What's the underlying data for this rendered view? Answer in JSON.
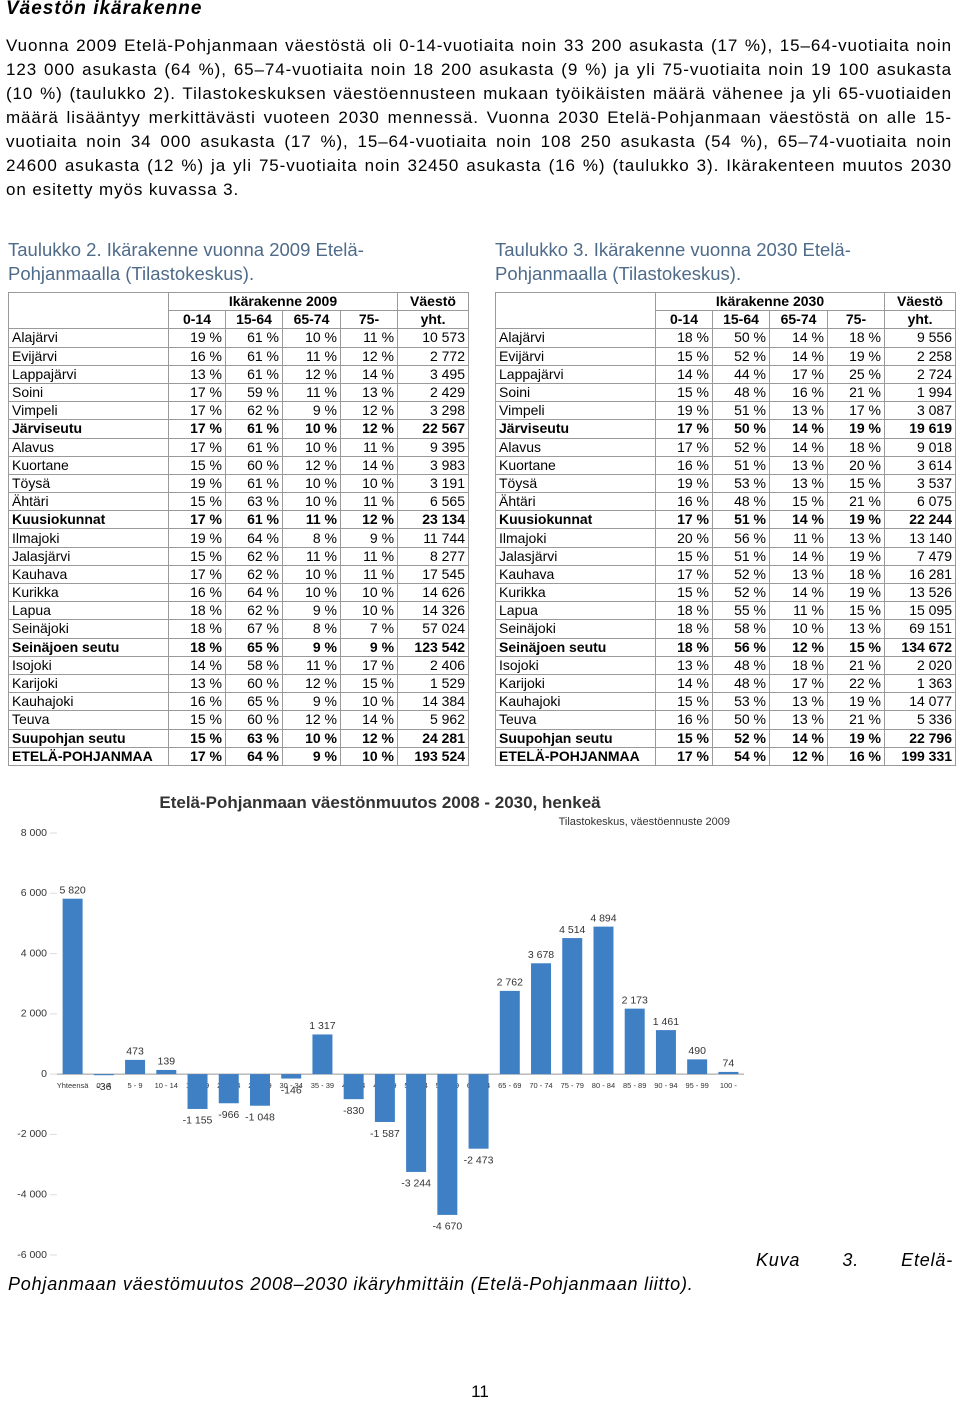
{
  "heading": "Väestön ikärakenne",
  "paragraph": "Vuonna 2009 Etelä-Pohjanmaan väestöstä oli 0-14-vuotiaita noin 33 200 asukasta (17 %), 15–64-vuotiaita noin 123 000 asukasta (64 %), 65–74-vuotiaita noin 18 200 asukasta (9 %) ja yli 75-vuotiaita noin 19 100 asukasta (10 %) (taulukko 2). Tilastokeskuksen väestöennusteen mukaan työikäisten määrä vähenee ja yli 65-vuotiaiden määrä lisääntyy merkittävästi vuoteen 2030 mennessä. Vuonna 2030 Etelä-Pohjanmaan väestöstä on alle 15-vuotiaita noin 34 000 asukasta (17 %), 15–64-vuotiaita noin 108 250 asukasta (54 %), 65–74-vuotiaita noin 24600 asukasta (12 %) ja yli 75-vuotiaita noin 32450 asukasta (16 %) (taulukko 3). Ikärakenteen muutos 2030 on esitetty myös kuvassa 3.",
  "table_2009": {
    "title": "Taulukko 2. Ikärakenne vuonna 2009 Etelä-Pohjanmaalla (Tilastokeskus).",
    "group_header": "Ikärakenne 2009",
    "total_header": "Väestö",
    "columns": [
      "0-14",
      "15-64",
      "65-74",
      "75-",
      "yht."
    ],
    "bold_rows": [
      5,
      10,
      17,
      22,
      23
    ],
    "rows": [
      [
        "Alajärvi",
        "19 %",
        "61 %",
        "10 %",
        "11 %",
        "10 573"
      ],
      [
        "Evijärvi",
        "16 %",
        "61 %",
        "11 %",
        "12 %",
        "2 772"
      ],
      [
        "Lappajärvi",
        "13 %",
        "61 %",
        "12 %",
        "14 %",
        "3 495"
      ],
      [
        "Soini",
        "17 %",
        "59 %",
        "11 %",
        "13 %",
        "2 429"
      ],
      [
        "Vimpeli",
        "17 %",
        "62 %",
        "9 %",
        "12 %",
        "3 298"
      ],
      [
        "Järviseutu",
        "17 %",
        "61 %",
        "10 %",
        "12 %",
        "22 567"
      ],
      [
        "Alavus",
        "17 %",
        "61 %",
        "10 %",
        "11 %",
        "9 395"
      ],
      [
        "Kuortane",
        "15 %",
        "60 %",
        "12 %",
        "14 %",
        "3 983"
      ],
      [
        "Töysä",
        "19 %",
        "61 %",
        "10 %",
        "10 %",
        "3 191"
      ],
      [
        "Ähtäri",
        "15 %",
        "63 %",
        "10 %",
        "11 %",
        "6 565"
      ],
      [
        "Kuusiokunnat",
        "17 %",
        "61 %",
        "11 %",
        "12 %",
        "23 134"
      ],
      [
        "Ilmajoki",
        "19 %",
        "64 %",
        "8 %",
        "9 %",
        "11 744"
      ],
      [
        "Jalasjärvi",
        "15 %",
        "62 %",
        "11 %",
        "11 %",
        "8 277"
      ],
      [
        "Kauhava",
        "17 %",
        "62 %",
        "10 %",
        "11 %",
        "17 545"
      ],
      [
        "Kurikka",
        "16 %",
        "64 %",
        "10 %",
        "10 %",
        "14 626"
      ],
      [
        "Lapua",
        "18 %",
        "62 %",
        "9 %",
        "10 %",
        "14 326"
      ],
      [
        "Seinäjoki",
        "18 %",
        "67 %",
        "8 %",
        "7 %",
        "57 024"
      ],
      [
        "Seinäjoen seutu",
        "18 %",
        "65 %",
        "9 %",
        "9 %",
        "123 542"
      ],
      [
        "Isojoki",
        "14 %",
        "58 %",
        "11 %",
        "17 %",
        "2 406"
      ],
      [
        "Karijoki",
        "13 %",
        "60 %",
        "12 %",
        "15 %",
        "1 529"
      ],
      [
        "Kauhajoki",
        "16 %",
        "65 %",
        "9 %",
        "10 %",
        "14 384"
      ],
      [
        "Teuva",
        "15 %",
        "60 %",
        "12 %",
        "14 %",
        "5 962"
      ],
      [
        "Suupohjan seutu",
        "15 %",
        "63 %",
        "10 %",
        "12 %",
        "24 281"
      ],
      [
        "ETELÄ-POHJANMAA",
        "17 %",
        "64 %",
        "9 %",
        "10 %",
        "193 524"
      ]
    ]
  },
  "table_2030": {
    "title": "Taulukko 3. Ikärakenne vuonna 2030 Etelä-Pohjanmaalla (Tilastokeskus).",
    "group_header": "Ikärakenne 2030",
    "total_header": "Väestö",
    "columns": [
      "0-14",
      "15-64",
      "65-74",
      "75-",
      "yht."
    ],
    "bold_rows": [
      5,
      10,
      17,
      22,
      23
    ],
    "rows": [
      [
        "Alajärvi",
        "18 %",
        "50 %",
        "14 %",
        "18 %",
        "9 556"
      ],
      [
        "Evijärvi",
        "15 %",
        "52 %",
        "14 %",
        "19 %",
        "2 258"
      ],
      [
        "Lappajärvi",
        "14 %",
        "44 %",
        "17 %",
        "25 %",
        "2 724"
      ],
      [
        "Soini",
        "15 %",
        "48 %",
        "16 %",
        "21 %",
        "1 994"
      ],
      [
        "Vimpeli",
        "19 %",
        "51 %",
        "13 %",
        "17 %",
        "3 087"
      ],
      [
        "Järviseutu",
        "17 %",
        "50 %",
        "14 %",
        "19 %",
        "19 619"
      ],
      [
        "Alavus",
        "17 %",
        "52 %",
        "14 %",
        "18 %",
        "9 018"
      ],
      [
        "Kuortane",
        "16 %",
        "51 %",
        "13 %",
        "20 %",
        "3 614"
      ],
      [
        "Töysä",
        "19 %",
        "53 %",
        "13 %",
        "15 %",
        "3 537"
      ],
      [
        "Ähtäri",
        "16 %",
        "48 %",
        "15 %",
        "21 %",
        "6 075"
      ],
      [
        "Kuusiokunnat",
        "17 %",
        "51 %",
        "14 %",
        "19 %",
        "22 244"
      ],
      [
        "Ilmajoki",
        "20 %",
        "56 %",
        "11 %",
        "13 %",
        "13 140"
      ],
      [
        "Jalasjärvi",
        "15 %",
        "51 %",
        "14 %",
        "19 %",
        "7 479"
      ],
      [
        "Kauhava",
        "17 %",
        "52 %",
        "13 %",
        "18 %",
        "16 281"
      ],
      [
        "Kurikka",
        "15 %",
        "52 %",
        "14 %",
        "19 %",
        "13 526"
      ],
      [
        "Lapua",
        "18 %",
        "55 %",
        "11 %",
        "15 %",
        "15 095"
      ],
      [
        "Seinäjoki",
        "18 %",
        "58 %",
        "10 %",
        "13 %",
        "69 151"
      ],
      [
        "Seinäjoen seutu",
        "18 %",
        "56 %",
        "12 %",
        "15 %",
        "134 672"
      ],
      [
        "Isojoki",
        "13 %",
        "48 %",
        "18 %",
        "21 %",
        "2 020"
      ],
      [
        "Karijoki",
        "14 %",
        "48 %",
        "17 %",
        "22 %",
        "1 363"
      ],
      [
        "Kauhajoki",
        "15 %",
        "53 %",
        "13 %",
        "19 %",
        "14 077"
      ],
      [
        "Teuva",
        "16 %",
        "50 %",
        "13 %",
        "21 %",
        "5 336"
      ],
      [
        "Suupohjan seutu",
        "15 %",
        "52 %",
        "14 %",
        "19 %",
        "22 796"
      ],
      [
        "ETELÄ-POHJANMAA",
        "17 %",
        "54 %",
        "12 %",
        "16 %",
        "199 331"
      ]
    ]
  },
  "chart_data": {
    "type": "bar",
    "title": "Etelä-Pohjanmaan väestönmuutos 2008 - 2030, henkeä",
    "subtitle": "Tilastokeskus, väestöennuste 2009",
    "categories": [
      "Yhteensä",
      "0 - 4",
      "5 - 9",
      "10 - 14",
      "15 - 19",
      "20 - 24",
      "25 - 29",
      "30 - 34",
      "35 - 39",
      "40 - 44",
      "45 - 49",
      "50 - 54",
      "55 - 59",
      "60 - 64",
      "65 - 69",
      "70 - 74",
      "75 - 79",
      "80 - 84",
      "85 - 89",
      "90 - 94",
      "95 - 99",
      "100 -"
    ],
    "values": [
      5820,
      -36,
      473,
      139,
      -1155,
      -966,
      -1048,
      -146,
      1317,
      -830,
      -1587,
      -3244,
      -4670,
      -2473,
      2762,
      3678,
      4514,
      4894,
      2173,
      1461,
      490,
      74
    ],
    "value_labels": [
      "5 820",
      "-36",
      "473",
      "139",
      "-1 155",
      "-966",
      "-1 048",
      "-146",
      "1 317",
      "-830",
      "-1 587",
      "-3 244",
      "-4 670",
      "-2 473",
      "2 762",
      "3 678",
      "4 514",
      "4 894",
      "2 173",
      "1 461",
      "490",
      "74"
    ],
    "color": "#3f7fc4",
    "ylim": [
      -6000,
      8000
    ],
    "yticks": [
      {
        "value": 8000,
        "label": "8 000"
      },
      {
        "value": 6000,
        "label": "6 000"
      },
      {
        "value": 4000,
        "label": "4 000"
      },
      {
        "value": 2000,
        "label": "2 000"
      },
      0,
      {
        "value": -2000,
        "label": "-2 000"
      },
      {
        "value": -4000,
        "label": "-4 000"
      },
      {
        "value": -6000,
        "label": "-6 000"
      }
    ],
    "grid": false
  },
  "caption": "Kuva 3. Etelä-Pohjanmaan väestömuutos 2008–2030 ikäryhmittäin (Etelä-Pohjanmaan liitto).",
  "page_number": "11"
}
